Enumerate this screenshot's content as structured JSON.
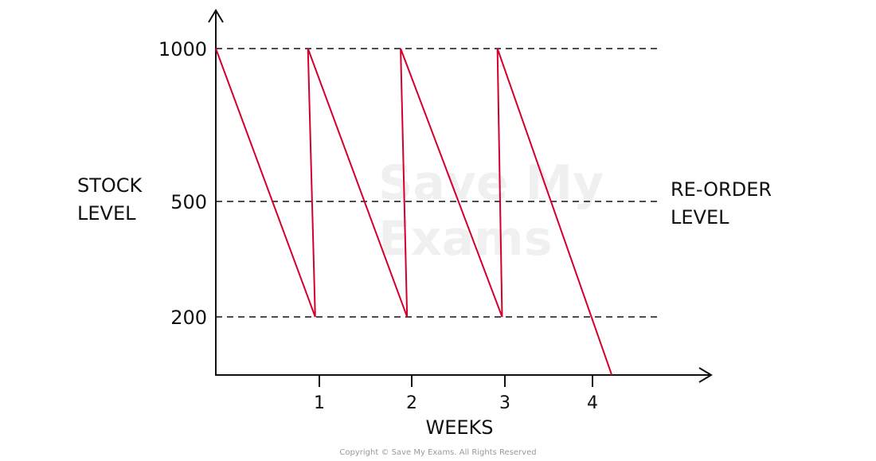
{
  "chart_data": {
    "type": "line",
    "title": "",
    "xlabel": "WEEKS",
    "ylabel": [
      "STOCK",
      "LEVEL"
    ],
    "x_ticks": [
      1,
      2,
      3,
      4
    ],
    "y_ticks": [
      1000,
      500,
      200
    ],
    "reference_lines": [
      {
        "y": 1000,
        "label": ""
      },
      {
        "y": 500,
        "label": [
          "RE-ORDER",
          "LEVEL"
        ]
      },
      {
        "y": 200,
        "label": ""
      }
    ],
    "series": [
      {
        "points": [
          [
            0,
            1000
          ],
          [
            0.96,
            200
          ],
          [
            0.89,
            1000
          ],
          [
            1.95,
            200
          ],
          [
            1.88,
            1000
          ],
          [
            2.97,
            200
          ],
          [
            2.92,
            1000
          ],
          [
            4.22,
            0
          ]
        ]
      }
    ],
    "xlim": [
      0,
      5.2
    ],
    "ylim": [
      0,
      1100
    ],
    "line_color": "#d4002c",
    "grid": false
  },
  "watermark": "Save My Exams",
  "copyright": "Copyright © Save My Exams. All Rights Reserved"
}
